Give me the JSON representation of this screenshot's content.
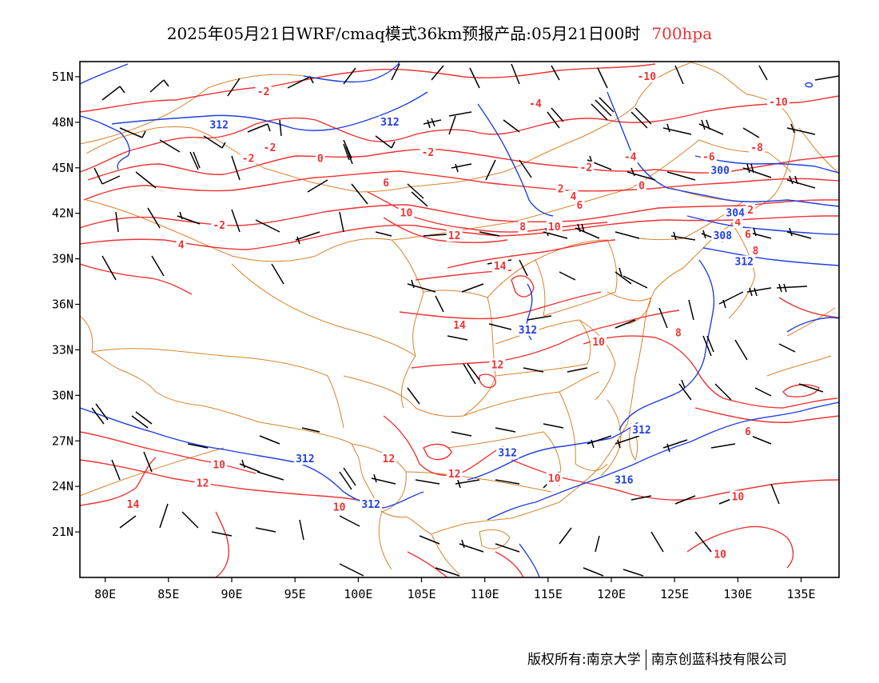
{
  "title": {
    "main": "2025年05月21日WRF/cmaq模式36km预报产品:05月21日00时",
    "level": "700hpa",
    "level_color": "#ee3333"
  },
  "map": {
    "lon_range": [
      78,
      138
    ],
    "lat_range": [
      18,
      52
    ],
    "lon_ticks": [
      {
        "value": 80,
        "label": "80E"
      },
      {
        "value": 85,
        "label": "85E"
      },
      {
        "value": 90,
        "label": "90E"
      },
      {
        "value": 95,
        "label": "95E"
      },
      {
        "value": 100,
        "label": "100E"
      },
      {
        "value": 105,
        "label": "105E"
      },
      {
        "value": 110,
        "label": "110E"
      },
      {
        "value": 115,
        "label": "115E"
      },
      {
        "value": 120,
        "label": "120E"
      },
      {
        "value": 125,
        "label": "125E"
      },
      {
        "value": 130,
        "label": "130E"
      },
      {
        "value": 135,
        "label": "135E"
      }
    ],
    "lat_ticks": [
      {
        "value": 51,
        "label": "51N"
      },
      {
        "value": 48,
        "label": "48N"
      },
      {
        "value": 45,
        "label": "45N"
      },
      {
        "value": 42,
        "label": "42N"
      },
      {
        "value": 39,
        "label": "39N"
      },
      {
        "value": 36,
        "label": "36N"
      },
      {
        "value": 33,
        "label": "33N"
      },
      {
        "value": 30,
        "label": "30N"
      },
      {
        "value": 27,
        "label": "27N"
      },
      {
        "value": 24,
        "label": "24N"
      },
      {
        "value": 21,
        "label": "21N"
      }
    ],
    "colors": {
      "temperature": "#ee3333",
      "geopotential": "#1f3fe0",
      "boundary": "#d9822b",
      "wind": "#000000",
      "frame": "#000000"
    },
    "temperature_labels": [
      {
        "text": "-2",
        "lon": 92.5,
        "lat": 50.0
      },
      {
        "text": "-2",
        "lon": 93.0,
        "lat": 46.3
      },
      {
        "text": "-2",
        "lon": 91.3,
        "lat": 45.6
      },
      {
        "text": "0",
        "lon": 97.0,
        "lat": 45.6
      },
      {
        "text": "-2",
        "lon": 105.5,
        "lat": 46.0
      },
      {
        "text": "6",
        "lon": 102.2,
        "lat": 44.0
      },
      {
        "text": "10",
        "lon": 103.8,
        "lat": 42.0
      },
      {
        "text": "12",
        "lon": 107.6,
        "lat": 40.5
      },
      {
        "text": "-2",
        "lon": 89.0,
        "lat": 41.2
      },
      {
        "text": "4",
        "lon": 86.0,
        "lat": 39.9
      },
      {
        "text": "-4",
        "lon": 114.0,
        "lat": 49.2
      },
      {
        "text": "-10",
        "lon": 122.8,
        "lat": 51.0
      },
      {
        "text": "-10",
        "lon": 133.2,
        "lat": 49.3
      },
      {
        "text": "-4",
        "lon": 121.5,
        "lat": 45.7
      },
      {
        "text": "-2",
        "lon": 118.0,
        "lat": 45.0
      },
      {
        "text": "0",
        "lon": 122.4,
        "lat": 43.8
      },
      {
        "text": "-6",
        "lon": 127.7,
        "lat": 45.7
      },
      {
        "text": "-8",
        "lon": 131.5,
        "lat": 46.3
      },
      {
        "text": "2",
        "lon": 116.0,
        "lat": 43.6
      },
      {
        "text": "4",
        "lon": 117.0,
        "lat": 43.1
      },
      {
        "text": "6",
        "lon": 117.5,
        "lat": 42.5
      },
      {
        "text": "8",
        "lon": 113.0,
        "lat": 41.1
      },
      {
        "text": "10",
        "lon": 115.5,
        "lat": 41.1
      },
      {
        "text": "2",
        "lon": 131.0,
        "lat": 42.2
      },
      {
        "text": "4",
        "lon": 130.0,
        "lat": 41.4
      },
      {
        "text": "6",
        "lon": 130.8,
        "lat": 40.6
      },
      {
        "text": "8",
        "lon": 131.4,
        "lat": 39.5
      },
      {
        "text": "14",
        "lon": 111.2,
        "lat": 38.5
      },
      {
        "text": "14",
        "lon": 108.0,
        "lat": 34.6
      },
      {
        "text": "10",
        "lon": 119.0,
        "lat": 33.5
      },
      {
        "text": "8",
        "lon": 125.3,
        "lat": 34.1
      },
      {
        "text": "12",
        "lon": 111.0,
        "lat": 32.0
      },
      {
        "text": "6",
        "lon": 130.8,
        "lat": 27.6
      },
      {
        "text": "12",
        "lon": 102.4,
        "lat": 25.8
      },
      {
        "text": "12",
        "lon": 107.6,
        "lat": 24.8
      },
      {
        "text": "10",
        "lon": 89.0,
        "lat": 25.4
      },
      {
        "text": "12",
        "lon": 87.7,
        "lat": 24.2
      },
      {
        "text": "14",
        "lon": 82.2,
        "lat": 22.8
      },
      {
        "text": "10",
        "lon": 98.5,
        "lat": 22.6
      },
      {
        "text": "10",
        "lon": 115.5,
        "lat": 24.5
      },
      {
        "text": "10",
        "lon": 130.0,
        "lat": 23.3
      },
      {
        "text": "10",
        "lon": 128.6,
        "lat": 19.5
      }
    ],
    "geopotential_labels": [
      {
        "text": "312",
        "lon": 89.0,
        "lat": 47.8
      },
      {
        "text": "312",
        "lon": 102.5,
        "lat": 48.0
      },
      {
        "text": "300",
        "lon": 128.6,
        "lat": 44.8
      },
      {
        "text": "304",
        "lon": 129.8,
        "lat": 42.0
      },
      {
        "text": "308",
        "lon": 128.8,
        "lat": 40.5
      },
      {
        "text": "312",
        "lon": 130.5,
        "lat": 38.8
      },
      {
        "text": "312",
        "lon": 113.4,
        "lat": 34.3
      },
      {
        "text": "312",
        "lon": 95.8,
        "lat": 25.8
      },
      {
        "text": "312",
        "lon": 122.4,
        "lat": 27.7
      },
      {
        "text": "312",
        "lon": 111.8,
        "lat": 26.2
      },
      {
        "text": "312",
        "lon": 101.0,
        "lat": 22.8
      },
      {
        "text": "316",
        "lon": 121.0,
        "lat": 24.4
      }
    ]
  },
  "footer": {
    "left": "版权所有:南京大学",
    "right": "南京创蓝科技有限公司"
  }
}
